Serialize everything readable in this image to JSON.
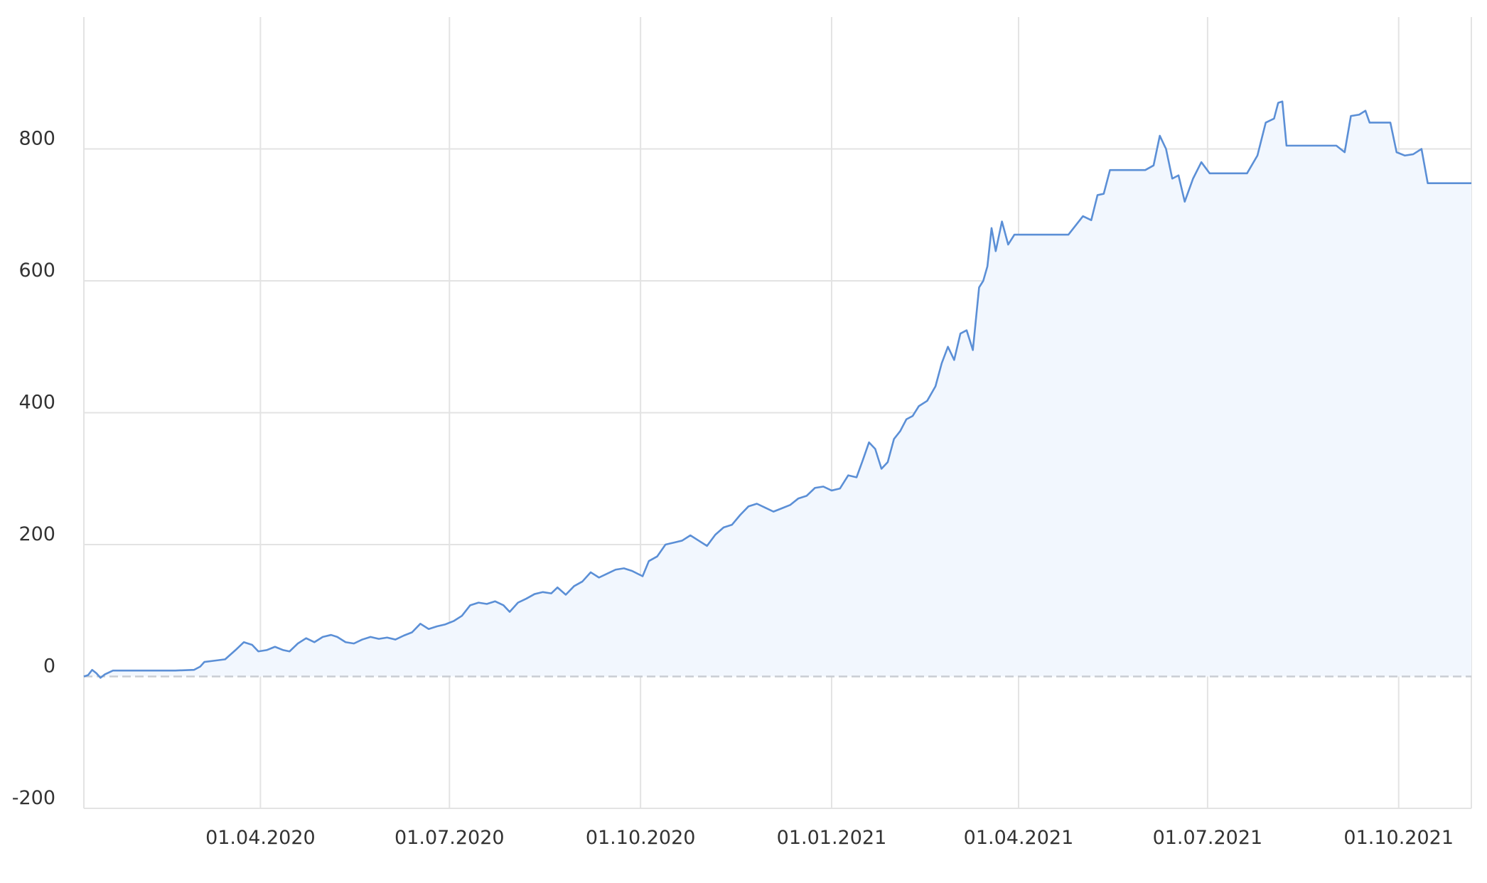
{
  "chart_data": {
    "type": "area",
    "title": "",
    "xlabel": "",
    "ylabel": "",
    "grid": true,
    "legend": "none",
    "colors": {
      "line": "#5b8fd6",
      "fill": "#f2f7fe",
      "grid": "#e3e3e3",
      "zero_line": "#c9cdd3",
      "text": "#333333"
    },
    "x_axis": {
      "type": "date",
      "range": [
        "2020-01-07",
        "2021-11-05"
      ],
      "ticks": [
        {
          "date": "2020-04-01",
          "label": "01.04.2020"
        },
        {
          "date": "2020-07-01",
          "label": "01.07.2020"
        },
        {
          "date": "2020-10-01",
          "label": "01.10.2020"
        },
        {
          "date": "2021-01-01",
          "label": "01.01.2021"
        },
        {
          "date": "2021-04-01",
          "label": "01.04.2021"
        },
        {
          "date": "2021-07-01",
          "label": "01.07.2021"
        },
        {
          "date": "2021-10-01",
          "label": "01.10.2021"
        }
      ]
    },
    "y_axis": {
      "range": [
        -200,
        1000
      ],
      "ticks": [
        {
          "value": -200,
          "label": "-200"
        },
        {
          "value": 0,
          "label": "0"
        },
        {
          "value": 200,
          "label": "200"
        },
        {
          "value": 400,
          "label": "400"
        },
        {
          "value": 600,
          "label": "600"
        },
        {
          "value": 800,
          "label": "800"
        }
      ]
    },
    "series": [
      {
        "points": [
          [
            "2020-01-07",
            0
          ],
          [
            "2020-01-09",
            2
          ],
          [
            "2020-01-11",
            10
          ],
          [
            "2020-01-13",
            5
          ],
          [
            "2020-01-15",
            -2
          ],
          [
            "2020-01-17",
            3
          ],
          [
            "2020-01-19",
            6
          ],
          [
            "2020-01-21",
            9
          ],
          [
            "2020-02-01",
            9
          ],
          [
            "2020-02-20",
            9
          ],
          [
            "2020-02-29",
            10
          ],
          [
            "2020-03-03",
            15
          ],
          [
            "2020-03-05",
            22
          ],
          [
            "2020-03-10",
            24
          ],
          [
            "2020-03-15",
            26
          ],
          [
            "2020-03-20",
            40
          ],
          [
            "2020-03-24",
            52
          ],
          [
            "2020-03-28",
            48
          ],
          [
            "2020-03-31",
            38
          ],
          [
            "2020-04-04",
            40
          ],
          [
            "2020-04-08",
            45
          ],
          [
            "2020-04-12",
            40
          ],
          [
            "2020-04-15",
            38
          ],
          [
            "2020-04-19",
            50
          ],
          [
            "2020-04-23",
            58
          ],
          [
            "2020-04-27",
            52
          ],
          [
            "2020-05-01",
            60
          ],
          [
            "2020-05-05",
            63
          ],
          [
            "2020-05-08",
            60
          ],
          [
            "2020-05-12",
            52
          ],
          [
            "2020-05-16",
            50
          ],
          [
            "2020-05-20",
            56
          ],
          [
            "2020-05-24",
            60
          ],
          [
            "2020-05-28",
            57
          ],
          [
            "2020-06-01",
            59
          ],
          [
            "2020-06-05",
            56
          ],
          [
            "2020-06-09",
            62
          ],
          [
            "2020-06-13",
            67
          ],
          [
            "2020-06-17",
            80
          ],
          [
            "2020-06-21",
            72
          ],
          [
            "2020-06-25",
            76
          ],
          [
            "2020-06-29",
            79
          ],
          [
            "2020-07-03",
            84
          ],
          [
            "2020-07-07",
            92
          ],
          [
            "2020-07-11",
            108
          ],
          [
            "2020-07-15",
            112
          ],
          [
            "2020-07-19",
            110
          ],
          [
            "2020-07-23",
            114
          ],
          [
            "2020-07-27",
            108
          ],
          [
            "2020-07-30",
            98
          ],
          [
            "2020-08-03",
            112
          ],
          [
            "2020-08-07",
            118
          ],
          [
            "2020-08-11",
            125
          ],
          [
            "2020-08-15",
            128
          ],
          [
            "2020-08-19",
            126
          ],
          [
            "2020-08-22",
            135
          ],
          [
            "2020-08-26",
            124
          ],
          [
            "2020-08-30",
            137
          ],
          [
            "2020-09-03",
            144
          ],
          [
            "2020-09-07",
            158
          ],
          [
            "2020-09-11",
            150
          ],
          [
            "2020-09-15",
            156
          ],
          [
            "2020-09-19",
            162
          ],
          [
            "2020-09-23",
            164
          ],
          [
            "2020-09-27",
            160
          ],
          [
            "2020-10-02",
            152
          ],
          [
            "2020-10-05",
            175
          ],
          [
            "2020-10-09",
            182
          ],
          [
            "2020-10-13",
            200
          ],
          [
            "2020-10-17",
            203
          ],
          [
            "2020-10-21",
            206
          ],
          [
            "2020-10-25",
            214
          ],
          [
            "2020-10-29",
            206
          ],
          [
            "2020-11-02",
            198
          ],
          [
            "2020-11-06",
            215
          ],
          [
            "2020-11-10",
            226
          ],
          [
            "2020-11-14",
            230
          ],
          [
            "2020-11-18",
            245
          ],
          [
            "2020-11-22",
            258
          ],
          [
            "2020-11-26",
            262
          ],
          [
            "2020-11-30",
            256
          ],
          [
            "2020-12-04",
            250
          ],
          [
            "2020-12-08",
            255
          ],
          [
            "2020-12-12",
            260
          ],
          [
            "2020-12-16",
            270
          ],
          [
            "2020-12-20",
            274
          ],
          [
            "2020-12-24",
            286
          ],
          [
            "2020-12-28",
            288
          ],
          [
            "2021-01-01",
            282
          ],
          [
            "2021-01-05",
            285
          ],
          [
            "2021-01-09",
            305
          ],
          [
            "2021-01-13",
            302
          ],
          [
            "2021-01-16",
            328
          ],
          [
            "2021-01-19",
            355
          ],
          [
            "2021-01-22",
            345
          ],
          [
            "2021-01-25",
            315
          ],
          [
            "2021-01-28",
            325
          ],
          [
            "2021-01-31",
            360
          ],
          [
            "2021-02-03",
            372
          ],
          [
            "2021-02-06",
            390
          ],
          [
            "2021-02-09",
            395
          ],
          [
            "2021-02-12",
            410
          ],
          [
            "2021-02-16",
            418
          ],
          [
            "2021-02-20",
            440
          ],
          [
            "2021-02-23",
            475
          ],
          [
            "2021-02-26",
            500
          ],
          [
            "2021-03-01",
            480
          ],
          [
            "2021-03-04",
            520
          ],
          [
            "2021-03-07",
            525
          ],
          [
            "2021-03-10",
            495
          ],
          [
            "2021-03-13",
            590
          ],
          [
            "2021-03-15",
            600
          ],
          [
            "2021-03-17",
            622
          ],
          [
            "2021-03-19",
            680
          ],
          [
            "2021-03-21",
            645
          ],
          [
            "2021-03-24",
            690
          ],
          [
            "2021-03-27",
            655
          ],
          [
            "2021-03-30",
            670
          ],
          [
            "2021-04-10",
            670
          ],
          [
            "2021-04-25",
            670
          ],
          [
            "2021-05-02",
            698
          ],
          [
            "2021-05-06",
            692
          ],
          [
            "2021-05-09",
            730
          ],
          [
            "2021-05-12",
            732
          ],
          [
            "2021-05-15",
            768
          ],
          [
            "2021-05-25",
            768
          ],
          [
            "2021-06-01",
            768
          ],
          [
            "2021-06-05",
            775
          ],
          [
            "2021-06-08",
            820
          ],
          [
            "2021-06-11",
            800
          ],
          [
            "2021-06-14",
            755
          ],
          [
            "2021-06-17",
            760
          ],
          [
            "2021-06-20",
            720
          ],
          [
            "2021-06-24",
            755
          ],
          [
            "2021-06-28",
            780
          ],
          [
            "2021-07-02",
            763
          ],
          [
            "2021-07-10",
            763
          ],
          [
            "2021-07-20",
            763
          ],
          [
            "2021-07-25",
            790
          ],
          [
            "2021-07-29",
            840
          ],
          [
            "2021-08-02",
            846
          ],
          [
            "2021-08-04",
            870
          ],
          [
            "2021-08-06",
            872
          ],
          [
            "2021-08-08",
            805
          ],
          [
            "2021-08-20",
            805
          ],
          [
            "2021-09-01",
            805
          ],
          [
            "2021-09-05",
            795
          ],
          [
            "2021-09-08",
            850
          ],
          [
            "2021-09-12",
            852
          ],
          [
            "2021-09-15",
            858
          ],
          [
            "2021-09-17",
            840
          ],
          [
            "2021-09-27",
            840
          ],
          [
            "2021-09-30",
            795
          ],
          [
            "2021-10-04",
            790
          ],
          [
            "2021-10-08",
            792
          ],
          [
            "2021-10-12",
            800
          ],
          [
            "2021-10-15",
            748
          ],
          [
            "2021-10-25",
            748
          ],
          [
            "2021-11-05",
            748
          ]
        ]
      }
    ]
  }
}
